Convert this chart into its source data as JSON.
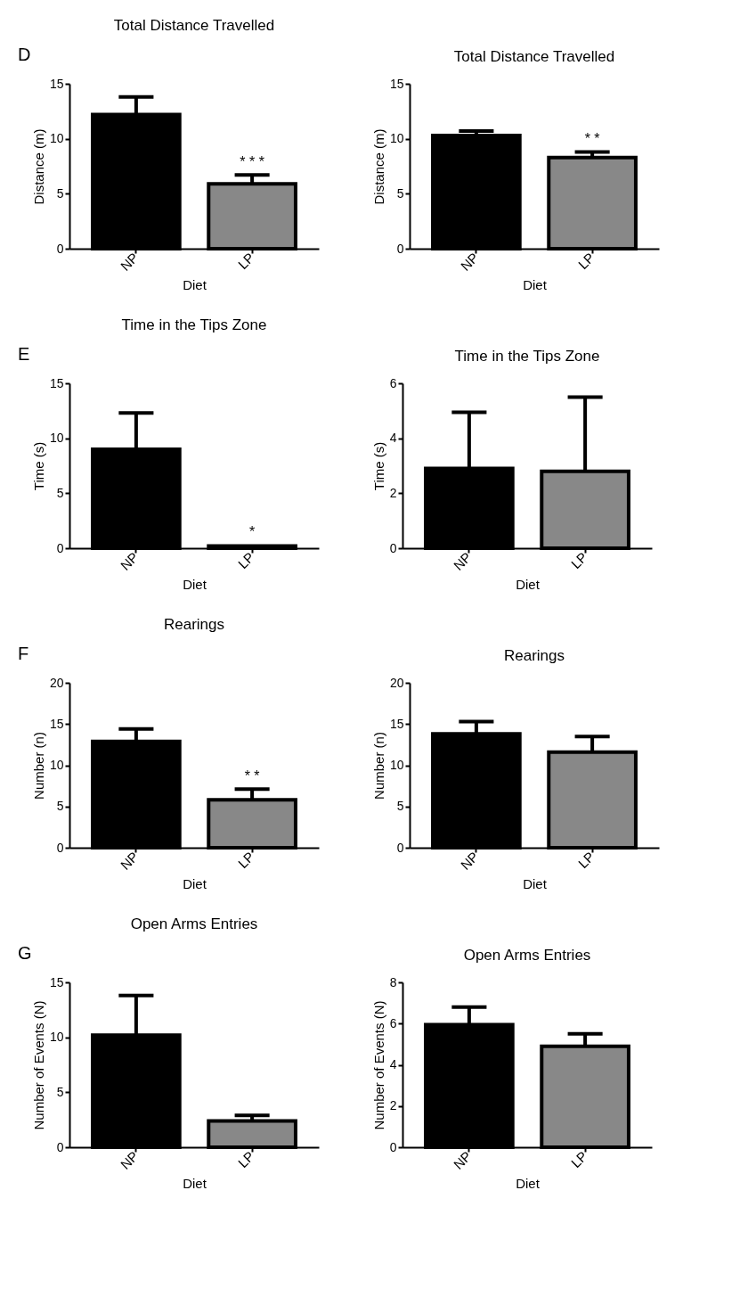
{
  "chart_data": [
    {
      "type": "bar",
      "title": "Total Distance Travelled",
      "xlabel": "Diet",
      "ylabel": "Distance (m)",
      "categories": [
        "NP",
        "LP"
      ],
      "values": [
        12.2,
        5.9
      ],
      "colors": [
        "#000000",
        "#888888"
      ],
      "errors": [
        [
          12.2,
          13.8
        ],
        [
          5.9,
          6.7
        ]
      ],
      "ylim": [
        0,
        15
      ],
      "yticks": [
        0,
        5,
        10,
        15
      ],
      "annotations": [
        "D",
        {
          "text": "* * *",
          "x": "LP",
          "y": 6.7
        }
      ]
    },
    {
      "type": "bar",
      "title": "Total Distance Travelled",
      "xlabel": "Diet",
      "ylabel": "Distance (m)",
      "categories": [
        "NP",
        "LP"
      ],
      "values": [
        10.3,
        8.3
      ],
      "colors": [
        "#000000",
        "#888888"
      ],
      "errors": [
        [
          10.3,
          10.7
        ],
        [
          8.3,
          8.8
        ]
      ],
      "ylim": [
        0,
        15
      ],
      "yticks": [
        0,
        5,
        10,
        15
      ],
      "annotations": [
        {
          "text": "* *",
          "x": "LP",
          "y": 8.8
        }
      ]
    },
    {
      "type": "bar",
      "title": "Time in the Tips Zone",
      "xlabel": "Diet",
      "ylabel": "Time (s)",
      "categories": [
        "NP",
        "LP"
      ],
      "values": [
        9.0,
        0.2
      ],
      "colors": [
        "#000000",
        "#888888"
      ],
      "errors": [
        [
          9.0,
          12.3
        ],
        null
      ],
      "ylim": [
        0,
        15
      ],
      "yticks": [
        0,
        5,
        10,
        15
      ],
      "annotations": [
        "E",
        {
          "text": "*",
          "x": "LP",
          "y": 0.3
        }
      ]
    },
    {
      "type": "bar",
      "title": "Time in the Tips Zone",
      "xlabel": "Diet",
      "ylabel": "Time (s)",
      "categories": [
        "NP",
        "LP"
      ],
      "values": [
        2.9,
        2.8
      ],
      "colors": [
        "#000000",
        "#888888"
      ],
      "errors": [
        [
          2.9,
          4.95
        ],
        [
          2.8,
          5.5
        ]
      ],
      "ylim": [
        0,
        6
      ],
      "yticks": [
        0,
        2,
        4,
        6
      ]
    },
    {
      "type": "bar",
      "title": "Rearings",
      "xlabel": "Diet",
      "ylabel": "Number (n)",
      "categories": [
        "NP",
        "LP"
      ],
      "values": [
        12.9,
        5.8
      ],
      "colors": [
        "#000000",
        "#888888"
      ],
      "errors": [
        [
          12.9,
          14.4
        ],
        [
          5.8,
          7.1
        ]
      ],
      "ylim": [
        0,
        20
      ],
      "yticks": [
        0,
        5,
        10,
        15,
        20
      ],
      "annotations": [
        "F",
        {
          "text": "* *",
          "x": "LP",
          "y": 7.1
        }
      ]
    },
    {
      "type": "bar",
      "title": "Rearings",
      "xlabel": "Diet",
      "ylabel": "Number (n)",
      "categories": [
        "NP",
        "LP"
      ],
      "values": [
        13.8,
        11.6
      ],
      "colors": [
        "#000000",
        "#888888"
      ],
      "errors": [
        [
          13.8,
          15.3
        ],
        [
          11.6,
          13.5
        ]
      ],
      "ylim": [
        0,
        20
      ],
      "yticks": [
        0,
        5,
        10,
        15,
        20
      ]
    },
    {
      "type": "bar",
      "title": "Open Arms Entries",
      "xlabel": "Diet",
      "ylabel": "Number of Events (N)",
      "categories": [
        "NP",
        "LP"
      ],
      "values": [
        10.2,
        2.4
      ],
      "colors": [
        "#000000",
        "#888888"
      ],
      "errors": [
        [
          10.2,
          13.8
        ],
        [
          2.4,
          2.9
        ]
      ],
      "ylim": [
        0,
        15
      ],
      "yticks": [
        0,
        5,
        10,
        15
      ],
      "annotations": [
        "G"
      ]
    },
    {
      "type": "bar",
      "title": "Open Arms Entries",
      "xlabel": "Diet",
      "ylabel": "Number of Events (N)",
      "categories": [
        "NP",
        "LP"
      ],
      "values": [
        5.95,
        4.9
      ],
      "colors": [
        "#000000",
        "#888888"
      ],
      "errors": [
        [
          5.95,
          6.8
        ],
        [
          4.9,
          5.5
        ]
      ],
      "ylim": [
        0,
        8
      ],
      "yticks": [
        0,
        2,
        4,
        6,
        8
      ]
    }
  ]
}
